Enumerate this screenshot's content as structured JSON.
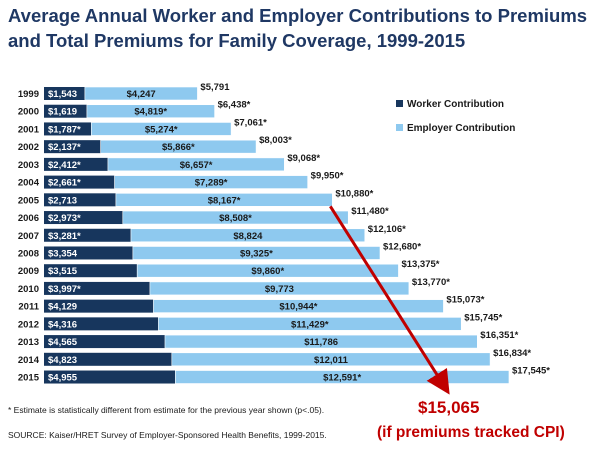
{
  "title_line1": "Average Annual Worker and Employer Contributions to Premiums",
  "title_line2": "and Total Premiums for Family Coverage, 1999-2015",
  "footnote": "* Estimate is statistically different from estimate for the previous year shown (p<.05).",
  "source": "SOURCE:  Kaiser/HRET Survey of Employer-Sponsored Health Benefits, 1999-2015.",
  "annotation": {
    "value": "$15,065",
    "note": "(if premiums tracked CPI)"
  },
  "colors": {
    "worker": "#17365d",
    "employer": "#8ec9ef",
    "title": "#1f3864",
    "annotation": "#c00000"
  },
  "chart_data": {
    "type": "bar",
    "orientation": "horizontal",
    "stacked": true,
    "title": "Average Annual Worker and Employer Contributions to Premiums and Total Premiums for Family Coverage, 1999-2015",
    "legend_position": "right",
    "grid": false,
    "categories": [
      "1999",
      "2000",
      "2001",
      "2002",
      "2003",
      "2004",
      "2005",
      "2006",
      "2007",
      "2008",
      "2009",
      "2010",
      "2011",
      "2012",
      "2013",
      "2014",
      "2015"
    ],
    "series": [
      {
        "name": "Worker Contribution",
        "color": "#17365d",
        "values": [
          1543,
          1619,
          1787,
          2137,
          2412,
          2661,
          2713,
          2973,
          3281,
          3354,
          3515,
          3997,
          4129,
          4316,
          4565,
          4823,
          4955
        ],
        "labels": [
          "$1,543",
          "$1,619",
          "$1,787*",
          "$2,137*",
          "$2,412*",
          "$2,661*",
          "$2,713",
          "$2,973*",
          "$3,281*",
          "$3,354",
          "$3,515",
          "$3,997*",
          "$4,129",
          "$4,316",
          "$4,565",
          "$4,823",
          "$4,955"
        ]
      },
      {
        "name": "Employer Contribution",
        "color": "#8ec9ef",
        "values": [
          4247,
          4819,
          5274,
          5866,
          6657,
          7289,
          8167,
          8508,
          8824,
          9325,
          9860,
          9773,
          10944,
          11429,
          11786,
          12011,
          12591
        ],
        "labels": [
          "$4,247",
          "$4,819*",
          "$5,274*",
          "$5,866*",
          "$6,657*",
          "$7,289*",
          "$8,167*",
          "$8,508*",
          "$8,824",
          "$9,325*",
          "$9,860*",
          "$9,773",
          "$10,944*",
          "$11,429*",
          "$11,786",
          "$12,011",
          "$12,591*"
        ]
      }
    ],
    "totals": [
      5791,
      6438,
      7061,
      8003,
      9068,
      9950,
      10880,
      11480,
      12106,
      12680,
      13375,
      13770,
      15073,
      15745,
      16351,
      16834,
      17545
    ],
    "total_labels": [
      "$5,791",
      "$6,438*",
      "$7,061*",
      "$8,003*",
      "$9,068*",
      "$9,950*",
      "$10,880*",
      "$11,480*",
      "$12,106*",
      "$12,680*",
      "$13,375*",
      "$13,770*",
      "$15,073*",
      "$15,745*",
      "$16,351*",
      "$16,834*",
      "$17,545*"
    ],
    "cpi_projection": {
      "from_category": "2005",
      "to_category": "2015",
      "value": 15065
    }
  }
}
